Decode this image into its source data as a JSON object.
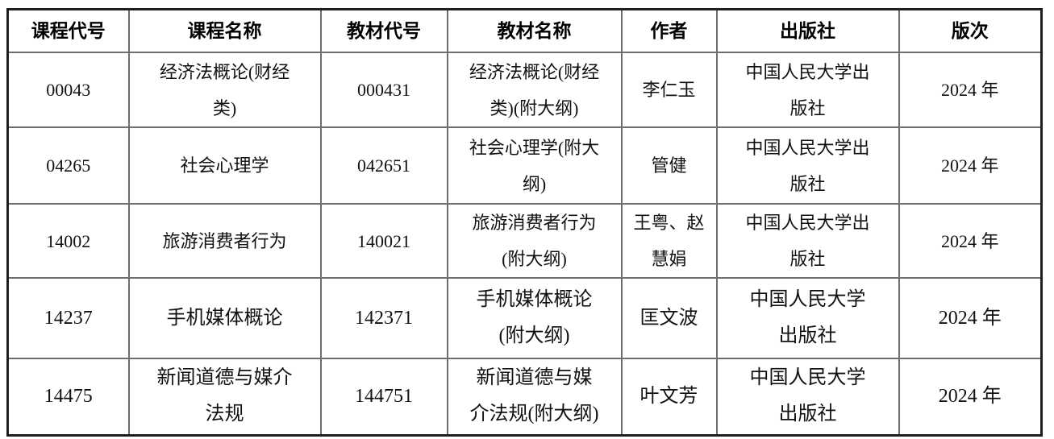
{
  "table": {
    "columns": [
      {
        "label": "课程代号"
      },
      {
        "label": "课程名称"
      },
      {
        "label": "教材代号"
      },
      {
        "label": "教材名称"
      },
      {
        "label": "作者"
      },
      {
        "label": "出版社"
      },
      {
        "label": "版次"
      }
    ],
    "rows": [
      {
        "course_code": "00043",
        "course_name": "经济法概论(财经\n类)",
        "textbook_code": "000431",
        "textbook_name": "经济法概论(财经\n类)(附大纲)",
        "author": "李仁玉",
        "publisher": "中国人民大学出\n版社",
        "edition": "2024 年"
      },
      {
        "course_code": "04265",
        "course_name": "社会心理学",
        "textbook_code": "042651",
        "textbook_name": "社会心理学(附大\n纲)",
        "author": "管健",
        "publisher": "中国人民大学出\n版社",
        "edition": "2024 年"
      },
      {
        "course_code": "14002",
        "course_name": "旅游消费者行为",
        "textbook_code": "140021",
        "textbook_name": "旅游消费者行为\n(附大纲)",
        "author": "王粤、赵\n慧娟",
        "publisher": "中国人民大学出\n版社",
        "edition": "2024 年"
      },
      {
        "course_code": "14237",
        "course_name": "手机媒体概论",
        "textbook_code": "142371",
        "textbook_name": "手机媒体概论\n(附大纲)",
        "author": "匡文波",
        "publisher": "中国人民大学\n出版社",
        "edition": "2024 年"
      },
      {
        "course_code": "14475",
        "course_name": "新闻道德与媒介\n法规",
        "textbook_code": "144751",
        "textbook_name": "新闻道德与媒\n介法规(附大纲)",
        "author": "叶文芳",
        "publisher": "中国人民大学\n出版社",
        "edition": "2024 年"
      }
    ]
  }
}
